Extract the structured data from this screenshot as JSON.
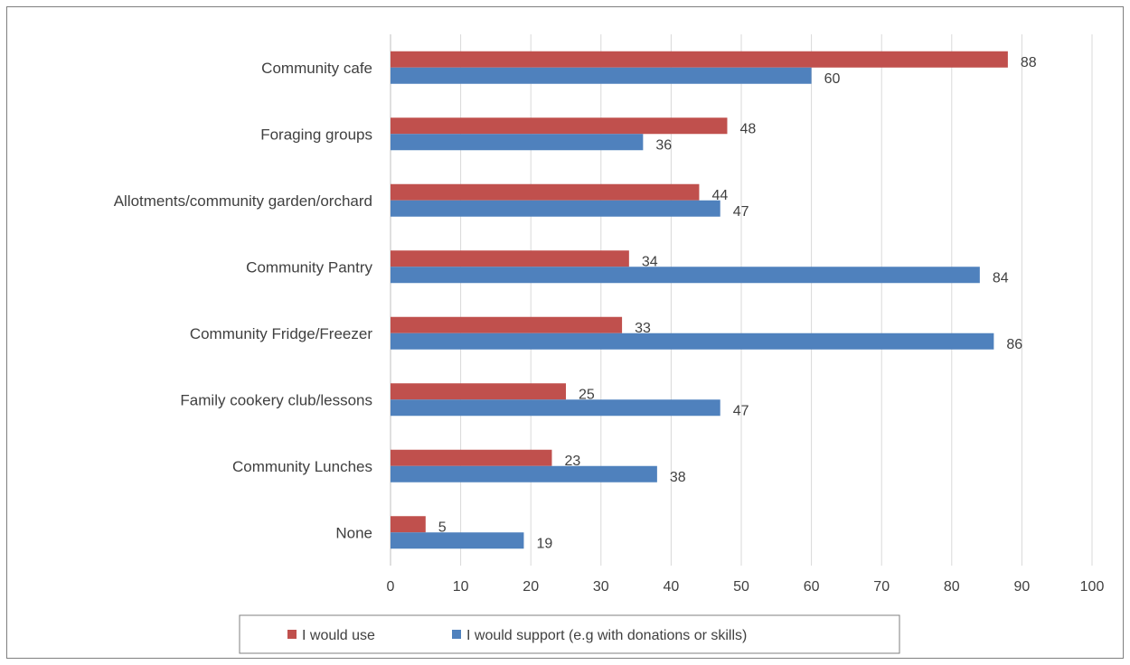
{
  "chart_data": {
    "type": "bar",
    "orientation": "horizontal",
    "title": "",
    "xlabel": "",
    "ylabel": "",
    "categories": [
      "Community cafe",
      "Foraging groups",
      "Allotments/community garden/orchard",
      "Community Pantry",
      "Community Fridge/Freezer",
      "Family cookery club/lessons",
      "Community Lunches",
      "None"
    ],
    "series": [
      {
        "name": "I would use",
        "color": "#c0504d",
        "values": [
          88,
          48,
          44,
          34,
          33,
          25,
          23,
          5
        ]
      },
      {
        "name": "I would support (e.g with donations or skills)",
        "color": "#4f81bd",
        "values": [
          60,
          36,
          47,
          84,
          86,
          47,
          38,
          19
        ]
      }
    ],
    "xlim": [
      0,
      100
    ],
    "xticks": [
      "0",
      "10",
      "20",
      "30",
      "40",
      "50",
      "60",
      "70",
      "80",
      "90",
      "100"
    ],
    "grid": true,
    "legend_position": "bottom"
  }
}
